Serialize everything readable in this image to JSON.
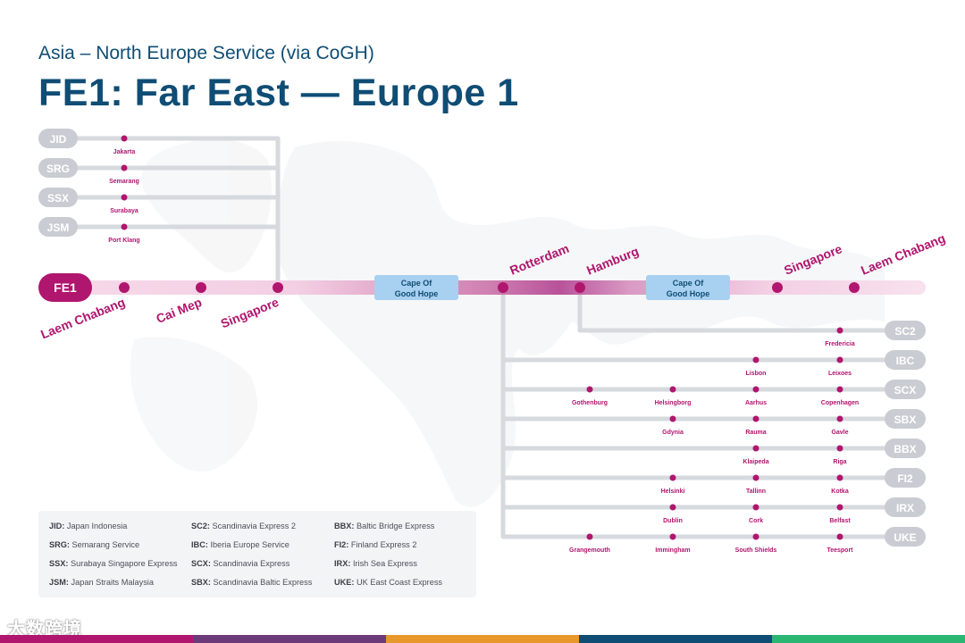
{
  "header": {
    "subtitle": "Asia – North Europe Service (via CoGH)",
    "title": "FE1: Far East — Europe 1"
  },
  "main_service": {
    "code": "FE1",
    "ports_outbound": [
      "Laem Chabang",
      "Cai Mep",
      "Singapore"
    ],
    "transit_outbound": "Cape Of Good Hope",
    "ports_europe": [
      "Rotterdam",
      "Hamburg"
    ],
    "transit_return": "Cape Of Good Hope",
    "ports_return": [
      "Singapore",
      "Laem Chabang"
    ]
  },
  "feeders_asia": [
    {
      "code": "JID",
      "port": "Jakarta"
    },
    {
      "code": "SRG",
      "port": "Semarang"
    },
    {
      "code": "SSX",
      "port": "Surabaya"
    },
    {
      "code": "JSM",
      "port": "Port Klang"
    }
  ],
  "feeders_europe": [
    {
      "code": "SC2",
      "ports": [
        "",
        "",
        "",
        "Fredericia"
      ]
    },
    {
      "code": "IBC",
      "ports": [
        "",
        "",
        "Lisbon",
        "Leixoes"
      ]
    },
    {
      "code": "SCX",
      "ports": [
        "Gothenburg",
        "Helsingborg",
        "Aarhus",
        "Copenhagen"
      ]
    },
    {
      "code": "SBX",
      "ports": [
        "",
        "Gdynia",
        "Rauma",
        "Gavle"
      ]
    },
    {
      "code": "BBX",
      "ports": [
        "",
        "",
        "Klaipeda",
        "Riga"
      ]
    },
    {
      "code": "FI2",
      "ports": [
        "",
        "Helsinki",
        "Tallinn",
        "Kotka"
      ]
    },
    {
      "code": "IRX",
      "ports": [
        "",
        "Dublin",
        "Cork",
        "Belfast"
      ]
    },
    {
      "code": "UKE",
      "ports": [
        "Grangemouth",
        "Immingham",
        "South Shields",
        "Teesport"
      ]
    }
  ],
  "legend": {
    "col1": [
      {
        "code": "JID:",
        "name": "Japan Indonesia"
      },
      {
        "code": "SRG:",
        "name": "Semarang Service"
      },
      {
        "code": "SSX:",
        "name": "Surabaya Singapore Express"
      },
      {
        "code": "JSM:",
        "name": "Japan Straits Malaysia"
      }
    ],
    "col2": [
      {
        "code": "SC2:",
        "name": "Scandinavia Express 2"
      },
      {
        "code": "IBC:",
        "name": "Iberia Europe Service"
      },
      {
        "code": "SCX:",
        "name": "Scandinavia Express"
      },
      {
        "code": "SBX:",
        "name": "Scandinavia Baltic Express"
      }
    ],
    "col3": [
      {
        "code": "BBX:",
        "name": "Baltic Bridge Express"
      },
      {
        "code": "FI2:",
        "name": "Finland Express 2"
      },
      {
        "code": "IRX:",
        "name": "Irish Sea Express"
      },
      {
        "code": "UKE:",
        "name": "UK East Coast Express"
      }
    ]
  },
  "watermark": "大数跨境",
  "colors": {
    "navy": "#0f4d74",
    "magenta": "#b0166e",
    "pill_gray": "#c9ccd2",
    "line_gray": "#d6d9de",
    "transit_blue": "#a8d0f0",
    "bottom_bar": [
      "#b0166e",
      "#6c3a78",
      "#e8972b",
      "#0f4d74",
      "#2bb673"
    ]
  }
}
